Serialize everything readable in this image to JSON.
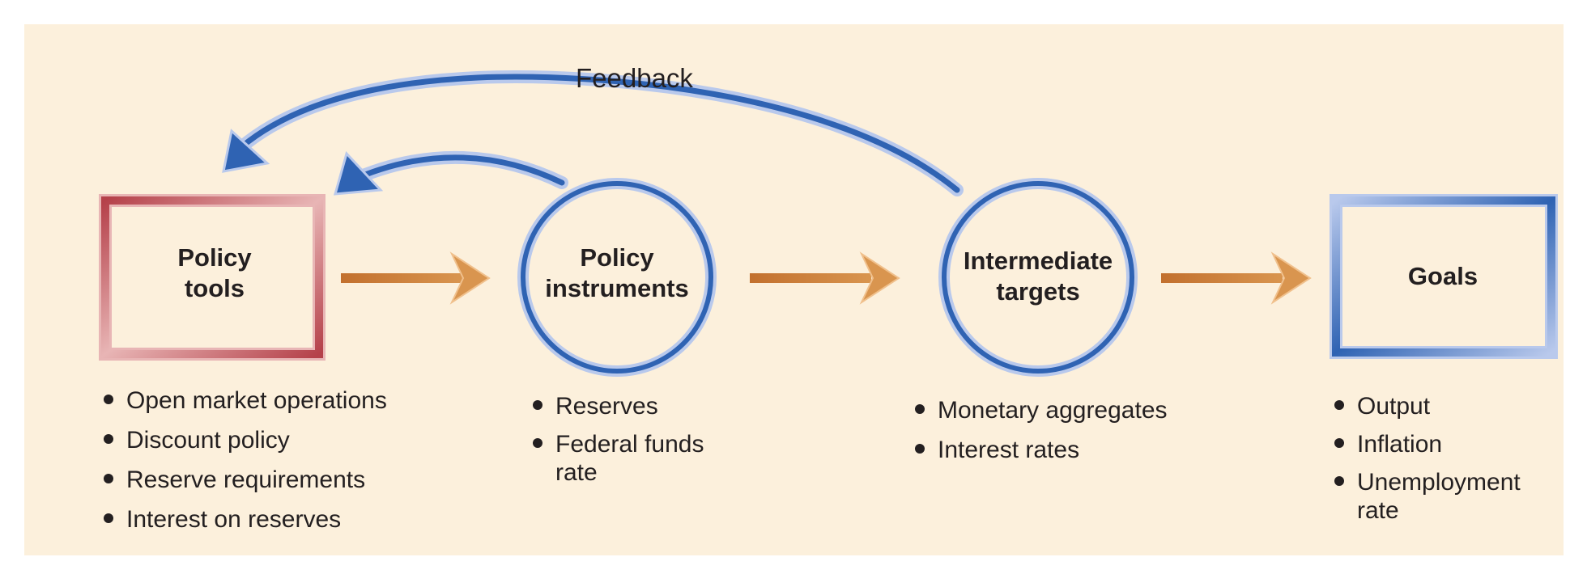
{
  "feedback": {
    "label": "Feedback"
  },
  "stages": [
    {
      "id": "policy-tools",
      "shape": "square",
      "label": "Policy\ntools",
      "items": [
        "Open market operations",
        "Discount policy",
        "Reserve requirements",
        "Interest on reserves"
      ]
    },
    {
      "id": "policy-instruments",
      "shape": "circle",
      "label": "Policy\ninstruments",
      "items": [
        "Reserves",
        "Federal funds\nrate"
      ]
    },
    {
      "id": "intermediate-targets",
      "shape": "circle",
      "label": "Intermediate\ntargets",
      "items": [
        "Monetary aggregates",
        "Interest rates"
      ]
    },
    {
      "id": "goals",
      "shape": "square",
      "label": "Goals",
      "items": [
        "Output",
        "Inflation",
        "Unemployment\nrate"
      ]
    }
  ],
  "colors": {
    "panel": "#fcf0dc",
    "tools_border": "#b5414a",
    "tools_border_light": "#e8b5b5",
    "blue": "#2f63b3",
    "blue_light": "#b9c9ec",
    "flow_arrow": "#c2702e",
    "flow_arrow_light": "#f0c08c"
  }
}
